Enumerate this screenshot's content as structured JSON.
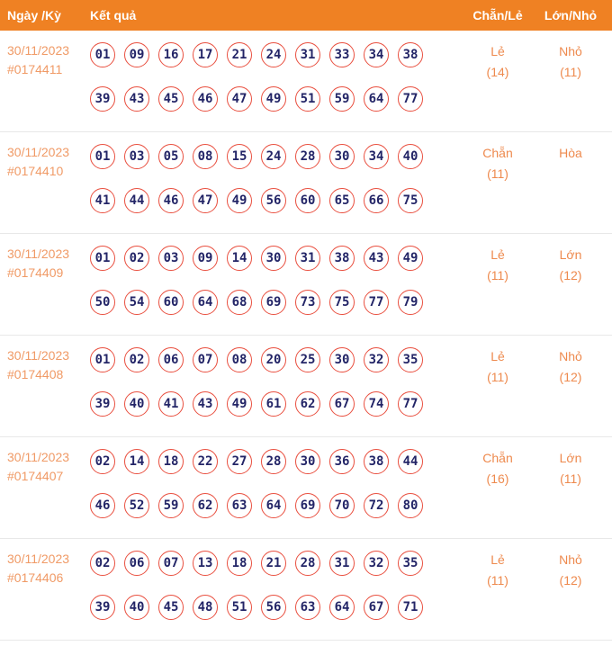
{
  "colors": {
    "header_bg": "#ef8123",
    "header_text": "#ffffff",
    "date_text": "#f09a66",
    "value_text": "#ee8a4e",
    "ball_border": "#e94f3f",
    "ball_text": "#232567",
    "row_divider": "#e8e8e8"
  },
  "header": {
    "col_date": "Ngày /Kỳ",
    "col_result": "Kết quả",
    "col_even_odd": "Chẵn/Lẻ",
    "col_big_small": "Lớn/Nhỏ"
  },
  "rows": [
    {
      "date": "30/11/2023",
      "draw_id": "#0174411",
      "numbers_line1": [
        "01",
        "09",
        "16",
        "17",
        "21",
        "24",
        "31",
        "33",
        "34",
        "38"
      ],
      "numbers_line2": [
        "39",
        "43",
        "45",
        "46",
        "47",
        "49",
        "51",
        "59",
        "64",
        "77"
      ],
      "even_odd_label": "Lẻ",
      "even_odd_count": "(14)",
      "big_small_label": "Nhỏ",
      "big_small_count": "(11)"
    },
    {
      "date": "30/11/2023",
      "draw_id": "#0174410",
      "numbers_line1": [
        "01",
        "03",
        "05",
        "08",
        "15",
        "24",
        "28",
        "30",
        "34",
        "40"
      ],
      "numbers_line2": [
        "41",
        "44",
        "46",
        "47",
        "49",
        "56",
        "60",
        "65",
        "66",
        "75"
      ],
      "even_odd_label": "Chẵn",
      "even_odd_count": "(11)",
      "big_small_label": "Hòa",
      "big_small_count": ""
    },
    {
      "date": "30/11/2023",
      "draw_id": "#0174409",
      "numbers_line1": [
        "01",
        "02",
        "03",
        "09",
        "14",
        "30",
        "31",
        "38",
        "43",
        "49"
      ],
      "numbers_line2": [
        "50",
        "54",
        "60",
        "64",
        "68",
        "69",
        "73",
        "75",
        "77",
        "79"
      ],
      "even_odd_label": "Lẻ",
      "even_odd_count": "(11)",
      "big_small_label": "Lớn",
      "big_small_count": "(12)"
    },
    {
      "date": "30/11/2023",
      "draw_id": "#0174408",
      "numbers_line1": [
        "01",
        "02",
        "06",
        "07",
        "08",
        "20",
        "25",
        "30",
        "32",
        "35"
      ],
      "numbers_line2": [
        "39",
        "40",
        "41",
        "43",
        "49",
        "61",
        "62",
        "67",
        "74",
        "77"
      ],
      "even_odd_label": "Lẻ",
      "even_odd_count": "(11)",
      "big_small_label": "Nhỏ",
      "big_small_count": "(12)"
    },
    {
      "date": "30/11/2023",
      "draw_id": "#0174407",
      "numbers_line1": [
        "02",
        "14",
        "18",
        "22",
        "27",
        "28",
        "30",
        "36",
        "38",
        "44"
      ],
      "numbers_line2": [
        "46",
        "52",
        "59",
        "62",
        "63",
        "64",
        "69",
        "70",
        "72",
        "80"
      ],
      "even_odd_label": "Chẵn",
      "even_odd_count": "(16)",
      "big_small_label": "Lớn",
      "big_small_count": "(11)"
    },
    {
      "date": "30/11/2023",
      "draw_id": "#0174406",
      "numbers_line1": [
        "02",
        "06",
        "07",
        "13",
        "18",
        "21",
        "28",
        "31",
        "32",
        "35"
      ],
      "numbers_line2": [
        "39",
        "40",
        "45",
        "48",
        "51",
        "56",
        "63",
        "64",
        "67",
        "71"
      ],
      "even_odd_label": "Lẻ",
      "even_odd_count": "(11)",
      "big_small_label": "Nhỏ",
      "big_small_count": "(12)"
    }
  ]
}
